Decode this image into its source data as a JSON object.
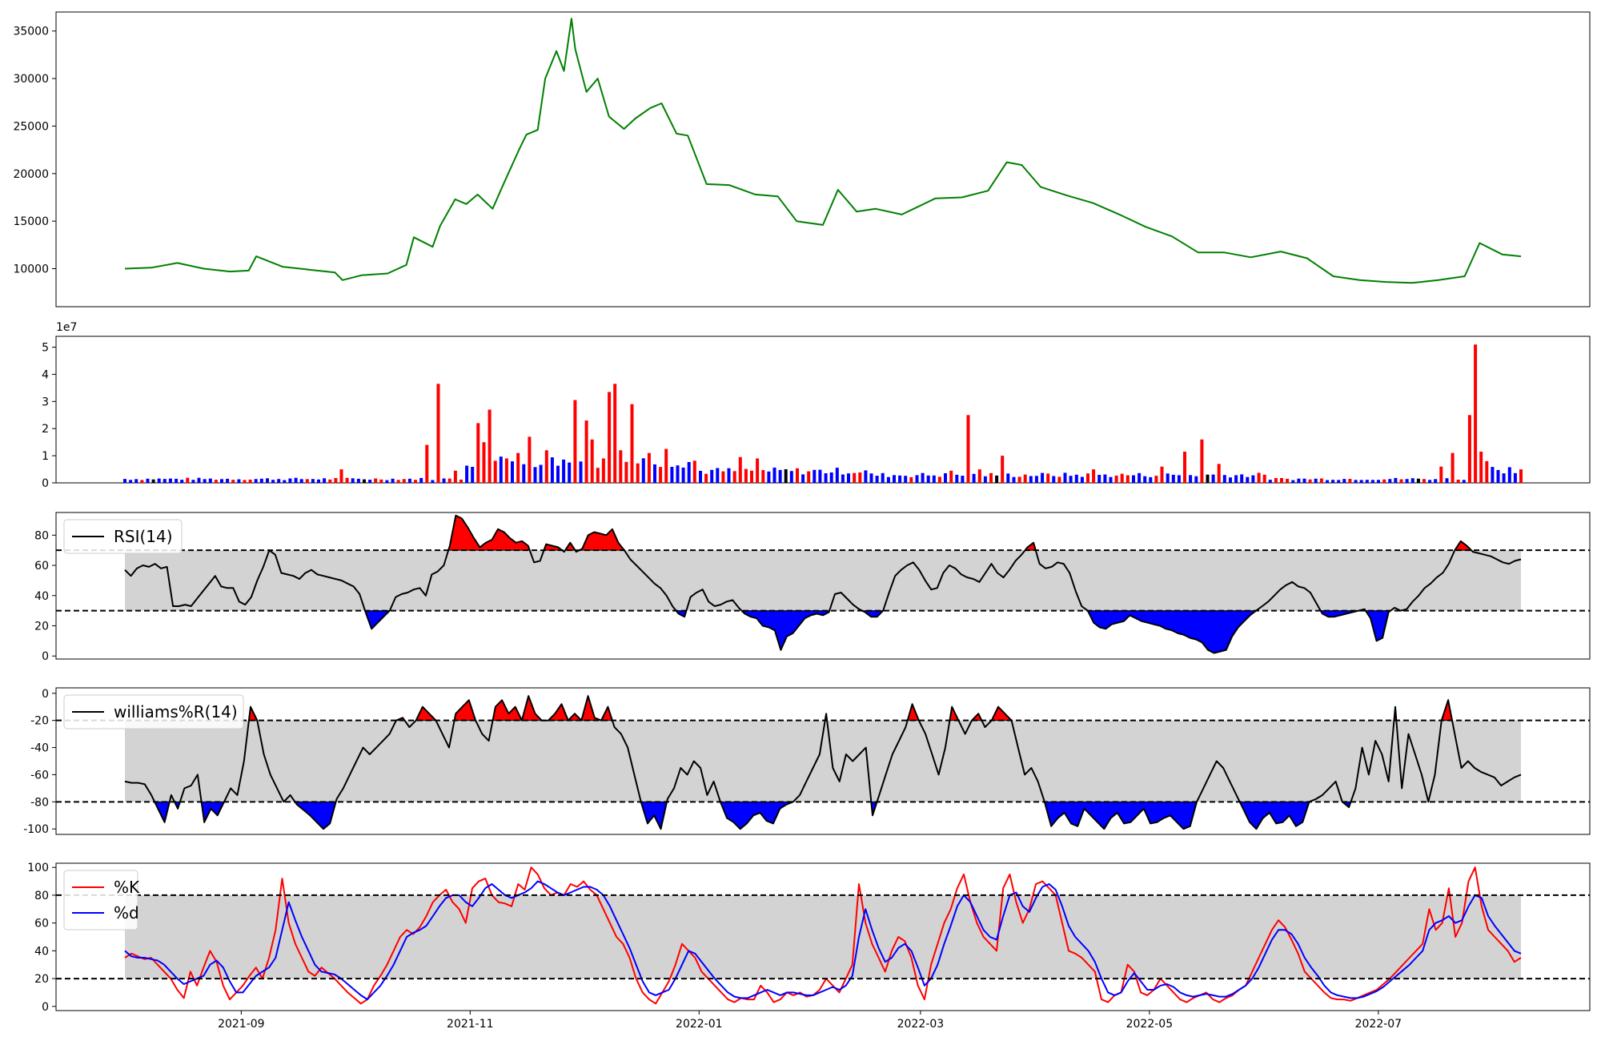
{
  "chart_data": [
    {
      "type": "line",
      "name": "price",
      "color": "#008000",
      "yticks": [
        10000,
        15000,
        20000,
        25000,
        30000,
        35000
      ],
      "ylim": [
        6000,
        37000
      ],
      "x": [
        "2021-08-01",
        "2021-08-08",
        "2021-08-15",
        "2021-08-22",
        "2021-08-29",
        "2021-09-03",
        "2021-09-05",
        "2021-09-12",
        "2021-09-19",
        "2021-09-26",
        "2021-09-28",
        "2021-10-03",
        "2021-10-10",
        "2021-10-15",
        "2021-10-17",
        "2021-10-22",
        "2021-10-24",
        "2021-10-28",
        "2021-10-31",
        "2021-11-03",
        "2021-11-07",
        "2021-11-10",
        "2021-11-14",
        "2021-11-16",
        "2021-11-19",
        "2021-11-21",
        "2021-11-24",
        "2021-11-26",
        "2021-11-28",
        "2021-11-29",
        "2021-12-02",
        "2021-12-05",
        "2021-12-08",
        "2021-12-12",
        "2021-12-15",
        "2021-12-19",
        "2021-12-22",
        "2021-12-26",
        "2021-12-29",
        "2022-01-03",
        "2022-01-09",
        "2022-01-16",
        "2022-01-22",
        "2022-01-27",
        "2022-02-03",
        "2022-02-07",
        "2022-02-12",
        "2022-02-17",
        "2022-02-24",
        "2022-03-05",
        "2022-03-12",
        "2022-03-19",
        "2022-03-24",
        "2022-03-28",
        "2022-04-02",
        "2022-04-09",
        "2022-04-16",
        "2022-04-23",
        "2022-04-30",
        "2022-05-07",
        "2022-05-14",
        "2022-05-21",
        "2022-05-28",
        "2022-06-05",
        "2022-06-12",
        "2022-06-19",
        "2022-06-26",
        "2022-07-03",
        "2022-07-10",
        "2022-07-17",
        "2022-07-24",
        "2022-07-28",
        "2022-08-03",
        "2022-08-08"
      ],
      "y": [
        10000,
        10100,
        10600,
        10000,
        9700,
        9800,
        11300,
        10200,
        9900,
        9600,
        8800,
        9300,
        9500,
        10400,
        13300,
        12300,
        14500,
        17300,
        16800,
        17800,
        16300,
        19000,
        22500,
        24100,
        24600,
        30000,
        32900,
        30800,
        36300,
        33100,
        28600,
        30000,
        26000,
        24700,
        25800,
        26900,
        27400,
        24200,
        24000,
        18900,
        18800,
        17800,
        17600,
        15000,
        14600,
        18300,
        16000,
        16300,
        15700,
        17400,
        17500,
        18200,
        21200,
        20900,
        18600,
        17700,
        16900,
        15700,
        14400,
        13400,
        11700,
        11700,
        11200,
        11800,
        11100,
        9200,
        8800,
        8600,
        8500,
        8800,
        9200,
        12700,
        11500,
        11300
      ]
    },
    {
      "type": "bar",
      "name": "volume",
      "scale_label": "1e7",
      "yticks": [
        0,
        1,
        2,
        3,
        4,
        5
      ],
      "ylim": [
        0,
        5.4
      ],
      "n_bars": 246,
      "peaks": [
        [
          38,
          0.5
        ],
        [
          53,
          1.4
        ],
        [
          55,
          3.65
        ],
        [
          58,
          0.45
        ],
        [
          62,
          2.2
        ],
        [
          63,
          1.5
        ],
        [
          64,
          2.7
        ],
        [
          67,
          0.9
        ],
        [
          69,
          1.1
        ],
        [
          71,
          1.7
        ],
        [
          74,
          1.2
        ],
        [
          79,
          3.05
        ],
        [
          81,
          2.3
        ],
        [
          82,
          1.6
        ],
        [
          84,
          0.9
        ],
        [
          85,
          3.35
        ],
        [
          86,
          3.65
        ],
        [
          87,
          1.2
        ],
        [
          89,
          2.9
        ],
        [
          92,
          1.1
        ],
        [
          95,
          1.25
        ],
        [
          108,
          0.95
        ],
        [
          111,
          0.9
        ],
        [
          145,
          0.45
        ],
        [
          148,
          2.5
        ],
        [
          150,
          0.5
        ],
        [
          154,
          1.0
        ],
        [
          170,
          0.5
        ],
        [
          182,
          0.6
        ],
        [
          186,
          1.15
        ],
        [
          189,
          1.6
        ],
        [
          192,
          0.7
        ],
        [
          200,
          0.3
        ],
        [
          231,
          0.6
        ],
        [
          233,
          1.1
        ],
        [
          236,
          2.5
        ],
        [
          237,
          5.1
        ],
        [
          238,
          1.15
        ],
        [
          239,
          0.8
        ],
        [
          245,
          0.5
        ]
      ],
      "colors": [
        "#0000ff",
        "#ff0000",
        "#000000"
      ]
    },
    {
      "type": "area",
      "name": "rsi",
      "legend": "RSI(14)",
      "yticks": [
        0,
        20,
        40,
        60,
        80
      ],
      "ylim": [
        -2,
        95
      ],
      "bands": [
        30,
        70
      ],
      "values": [
        57,
        53,
        58,
        60,
        59,
        61,
        58,
        59,
        33,
        33,
        34,
        33,
        38,
        43,
        48,
        53,
        46,
        45,
        45,
        36,
        34,
        39,
        50,
        59,
        70,
        67,
        55,
        54,
        53,
        51,
        55,
        57,
        54,
        53,
        52,
        51,
        50,
        48,
        46,
        41,
        29,
        18,
        22,
        26,
        30,
        39,
        41,
        42,
        44,
        45,
        40,
        54,
        56,
        60,
        73,
        93,
        91,
        85,
        78,
        72,
        75,
        77,
        84,
        82,
        78,
        75,
        76,
        73,
        62,
        63,
        74,
        73,
        72,
        69,
        75,
        69,
        71,
        80,
        82,
        81,
        80,
        84,
        75,
        70,
        64,
        60,
        56,
        52,
        48,
        45,
        40,
        33,
        28,
        26,
        39,
        42,
        44,
        36,
        33,
        34,
        36,
        37,
        32,
        28,
        26,
        25,
        20,
        19,
        17,
        4,
        13,
        15,
        20,
        25,
        27,
        28,
        27,
        29,
        41,
        42,
        38,
        34,
        31,
        29,
        26,
        26,
        30,
        42,
        53,
        57,
        60,
        62,
        57,
        50,
        44,
        45,
        55,
        60,
        58,
        54,
        52,
        51,
        49,
        55,
        61,
        55,
        52,
        57,
        63,
        67,
        72,
        75,
        61,
        58,
        59,
        62,
        61,
        55,
        43,
        33,
        30,
        22,
        19,
        18,
        21,
        22,
        23,
        27,
        25,
        23,
        22,
        21,
        20,
        18,
        17,
        15,
        14,
        12,
        11,
        9,
        4,
        2,
        3,
        4,
        13,
        19,
        23,
        27,
        30,
        33,
        36,
        40,
        44,
        47,
        49,
        46,
        45,
        42,
        35,
        28,
        26,
        26,
        27,
        28,
        29,
        30,
        31,
        25,
        10,
        12,
        29,
        32,
        30,
        31,
        36,
        40,
        45,
        48,
        52,
        55,
        61,
        70,
        76,
        73,
        69,
        68,
        67,
        66,
        64,
        62,
        61,
        63,
        64
      ]
    },
    {
      "type": "area",
      "name": "williams",
      "legend": "williams%R(14)",
      "yticks": [
        0,
        -20,
        -40,
        -60,
        -80,
        -100
      ],
      "ylim": [
        -104,
        4
      ],
      "bands": [
        -80,
        -20
      ],
      "values": [
        -65,
        -66,
        -66,
        -67,
        -75,
        -85,
        -95,
        -75,
        -85,
        -70,
        -68,
        -60,
        -95,
        -85,
        -90,
        -80,
        -70,
        -75,
        -50,
        -10,
        -20,
        -45,
        -60,
        -70,
        -80,
        -75,
        -82,
        -86,
        -90,
        -95,
        -100,
        -96,
        -78,
        -70,
        -60,
        -50,
        -40,
        -45,
        -40,
        -35,
        -30,
        -20,
        -18,
        -25,
        -20,
        -10,
        -15,
        -20,
        -30,
        -40,
        -15,
        -10,
        -5,
        -20,
        -30,
        -35,
        -10,
        -5,
        -15,
        -10,
        -20,
        -2,
        -15,
        -20,
        -20,
        -15,
        -8,
        -20,
        -15,
        -20,
        -2,
        -18,
        -20,
        -10,
        -25,
        -30,
        -40,
        -60,
        -80,
        -96,
        -90,
        -100,
        -78,
        -70,
        -55,
        -60,
        -50,
        -55,
        -75,
        -65,
        -80,
        -92,
        -95,
        -100,
        -96,
        -90,
        -88,
        -94,
        -96,
        -85,
        -82,
        -80,
        -75,
        -65,
        -55,
        -45,
        -15,
        -55,
        -65,
        -45,
        -50,
        -45,
        -40,
        -90,
        -75,
        -60,
        -45,
        -35,
        -25,
        -8,
        -20,
        -30,
        -45,
        -60,
        -40,
        -10,
        -20,
        -30,
        -20,
        -15,
        -25,
        -20,
        -10,
        -15,
        -20,
        -40,
        -60,
        -55,
        -65,
        -80,
        -98,
        -92,
        -88,
        -96,
        -98,
        -85,
        -90,
        -95,
        -100,
        -92,
        -88,
        -96,
        -95,
        -90,
        -85,
        -96,
        -95,
        -92,
        -90,
        -95,
        -100,
        -98,
        -80,
        -70,
        -60,
        -50,
        -55,
        -65,
        -75,
        -85,
        -95,
        -100,
        -92,
        -88,
        -96,
        -95,
        -90,
        -98,
        -95,
        -80,
        -78,
        -75,
        -70,
        -65,
        -80,
        -84,
        -70,
        -40,
        -60,
        -35,
        -45,
        -65,
        -10,
        -70,
        -30,
        -45,
        -60,
        -80,
        -60,
        -20,
        -5,
        -30,
        -55,
        -50,
        -55,
        -58,
        -60,
        -62,
        -68,
        -65,
        -62,
        -60
      ]
    },
    {
      "type": "line",
      "name": "stochastic",
      "yticks": [
        0,
        20,
        40,
        60,
        80,
        100
      ],
      "ylim": [
        -3,
        103
      ],
      "bands": [
        20,
        80
      ],
      "series": [
        {
          "name": "%K",
          "color": "#ff0000",
          "values": [
            35,
            38,
            36,
            34,
            35,
            30,
            25,
            20,
            12,
            6,
            25,
            15,
            28,
            40,
            32,
            15,
            5,
            10,
            15,
            22,
            28,
            20,
            35,
            55,
            92,
            60,
            45,
            35,
            25,
            22,
            28,
            24,
            20,
            15,
            10,
            6,
            2,
            5,
            15,
            22,
            30,
            40,
            50,
            55,
            52,
            57,
            65,
            75,
            80,
            84,
            75,
            70,
            60,
            85,
            90,
            92,
            80,
            75,
            74,
            72,
            88,
            84,
            100,
            95,
            85,
            80,
            82,
            80,
            88,
            86,
            90,
            84,
            80,
            70,
            60,
            50,
            45,
            35,
            20,
            10,
            5,
            2,
            10,
            18,
            30,
            45,
            40,
            35,
            25,
            20,
            15,
            10,
            5,
            3,
            6,
            5,
            5,
            15,
            10,
            3,
            5,
            10,
            8,
            10,
            7,
            8,
            12,
            20,
            15,
            10,
            20,
            30,
            88,
            60,
            45,
            35,
            25,
            40,
            50,
            47,
            35,
            15,
            5,
            30,
            45,
            60,
            70,
            85,
            95,
            75,
            60,
            50,
            45,
            40,
            85,
            95,
            75,
            60,
            70,
            88,
            90,
            85,
            80,
            60,
            40,
            38,
            35,
            30,
            25,
            5,
            3,
            8,
            10,
            30,
            25,
            10,
            8,
            12,
            20,
            15,
            10,
            5,
            3,
            6,
            8,
            10,
            5,
            3,
            6,
            8,
            12,
            15,
            25,
            35,
            45,
            55,
            62,
            57,
            48,
            38,
            25,
            20,
            15,
            10,
            6,
            5,
            5,
            4,
            6,
            8,
            10,
            12,
            16,
            20,
            25,
            30,
            35,
            40,
            45,
            70,
            55,
            60,
            85,
            50,
            60,
            90,
            100,
            72,
            55,
            50,
            45,
            40,
            32,
            35
          ]
        },
        {
          "name": "%d",
          "color": "#0000ff",
          "values": [
            40,
            36,
            35,
            35,
            34,
            33,
            30,
            25,
            20,
            16,
            18,
            20,
            22,
            30,
            33,
            28,
            18,
            10,
            10,
            16,
            22,
            25,
            28,
            35,
            55,
            75,
            62,
            50,
            40,
            30,
            25,
            24,
            23,
            20,
            16,
            12,
            8,
            5,
            10,
            15,
            22,
            30,
            40,
            50,
            53,
            55,
            58,
            65,
            72,
            78,
            80,
            80,
            75,
            72,
            78,
            85,
            88,
            84,
            80,
            78,
            80,
            82,
            85,
            90,
            88,
            85,
            82,
            80,
            82,
            84,
            86,
            86,
            84,
            80,
            72,
            62,
            52,
            42,
            30,
            18,
            10,
            8,
            10,
            12,
            20,
            30,
            40,
            38,
            32,
            26,
            20,
            15,
            10,
            7,
            6,
            6,
            8,
            10,
            12,
            10,
            8,
            10,
            10,
            9,
            8,
            8,
            10,
            12,
            14,
            12,
            15,
            22,
            50,
            70,
            55,
            42,
            32,
            35,
            42,
            45,
            40,
            28,
            15,
            20,
            30,
            45,
            58,
            72,
            80,
            75,
            65,
            55,
            50,
            48,
            65,
            80,
            82,
            72,
            68,
            78,
            86,
            88,
            84,
            72,
            58,
            50,
            45,
            40,
            32,
            20,
            10,
            8,
            10,
            18,
            24,
            18,
            12,
            12,
            15,
            16,
            14,
            10,
            8,
            7,
            8,
            9,
            8,
            7,
            7,
            9,
            12,
            15,
            20,
            28,
            38,
            48,
            55,
            55,
            52,
            45,
            35,
            28,
            22,
            15,
            10,
            8,
            7,
            6,
            6,
            7,
            9,
            11,
            14,
            18,
            22,
            26,
            30,
            35,
            40,
            55,
            60,
            62,
            65,
            60,
            62,
            72,
            80,
            78,
            65,
            58,
            52,
            46,
            40,
            38
          ]
        }
      ],
      "xticks": [
        "2021-09",
        "2021-11",
        "2022-01",
        "2022-03",
        "2022-05",
        "2022-07"
      ]
    }
  ],
  "legends": {
    "rsi": "RSI(14)",
    "williams": "williams%R(14)",
    "k": "%K",
    "d": "%d"
  }
}
